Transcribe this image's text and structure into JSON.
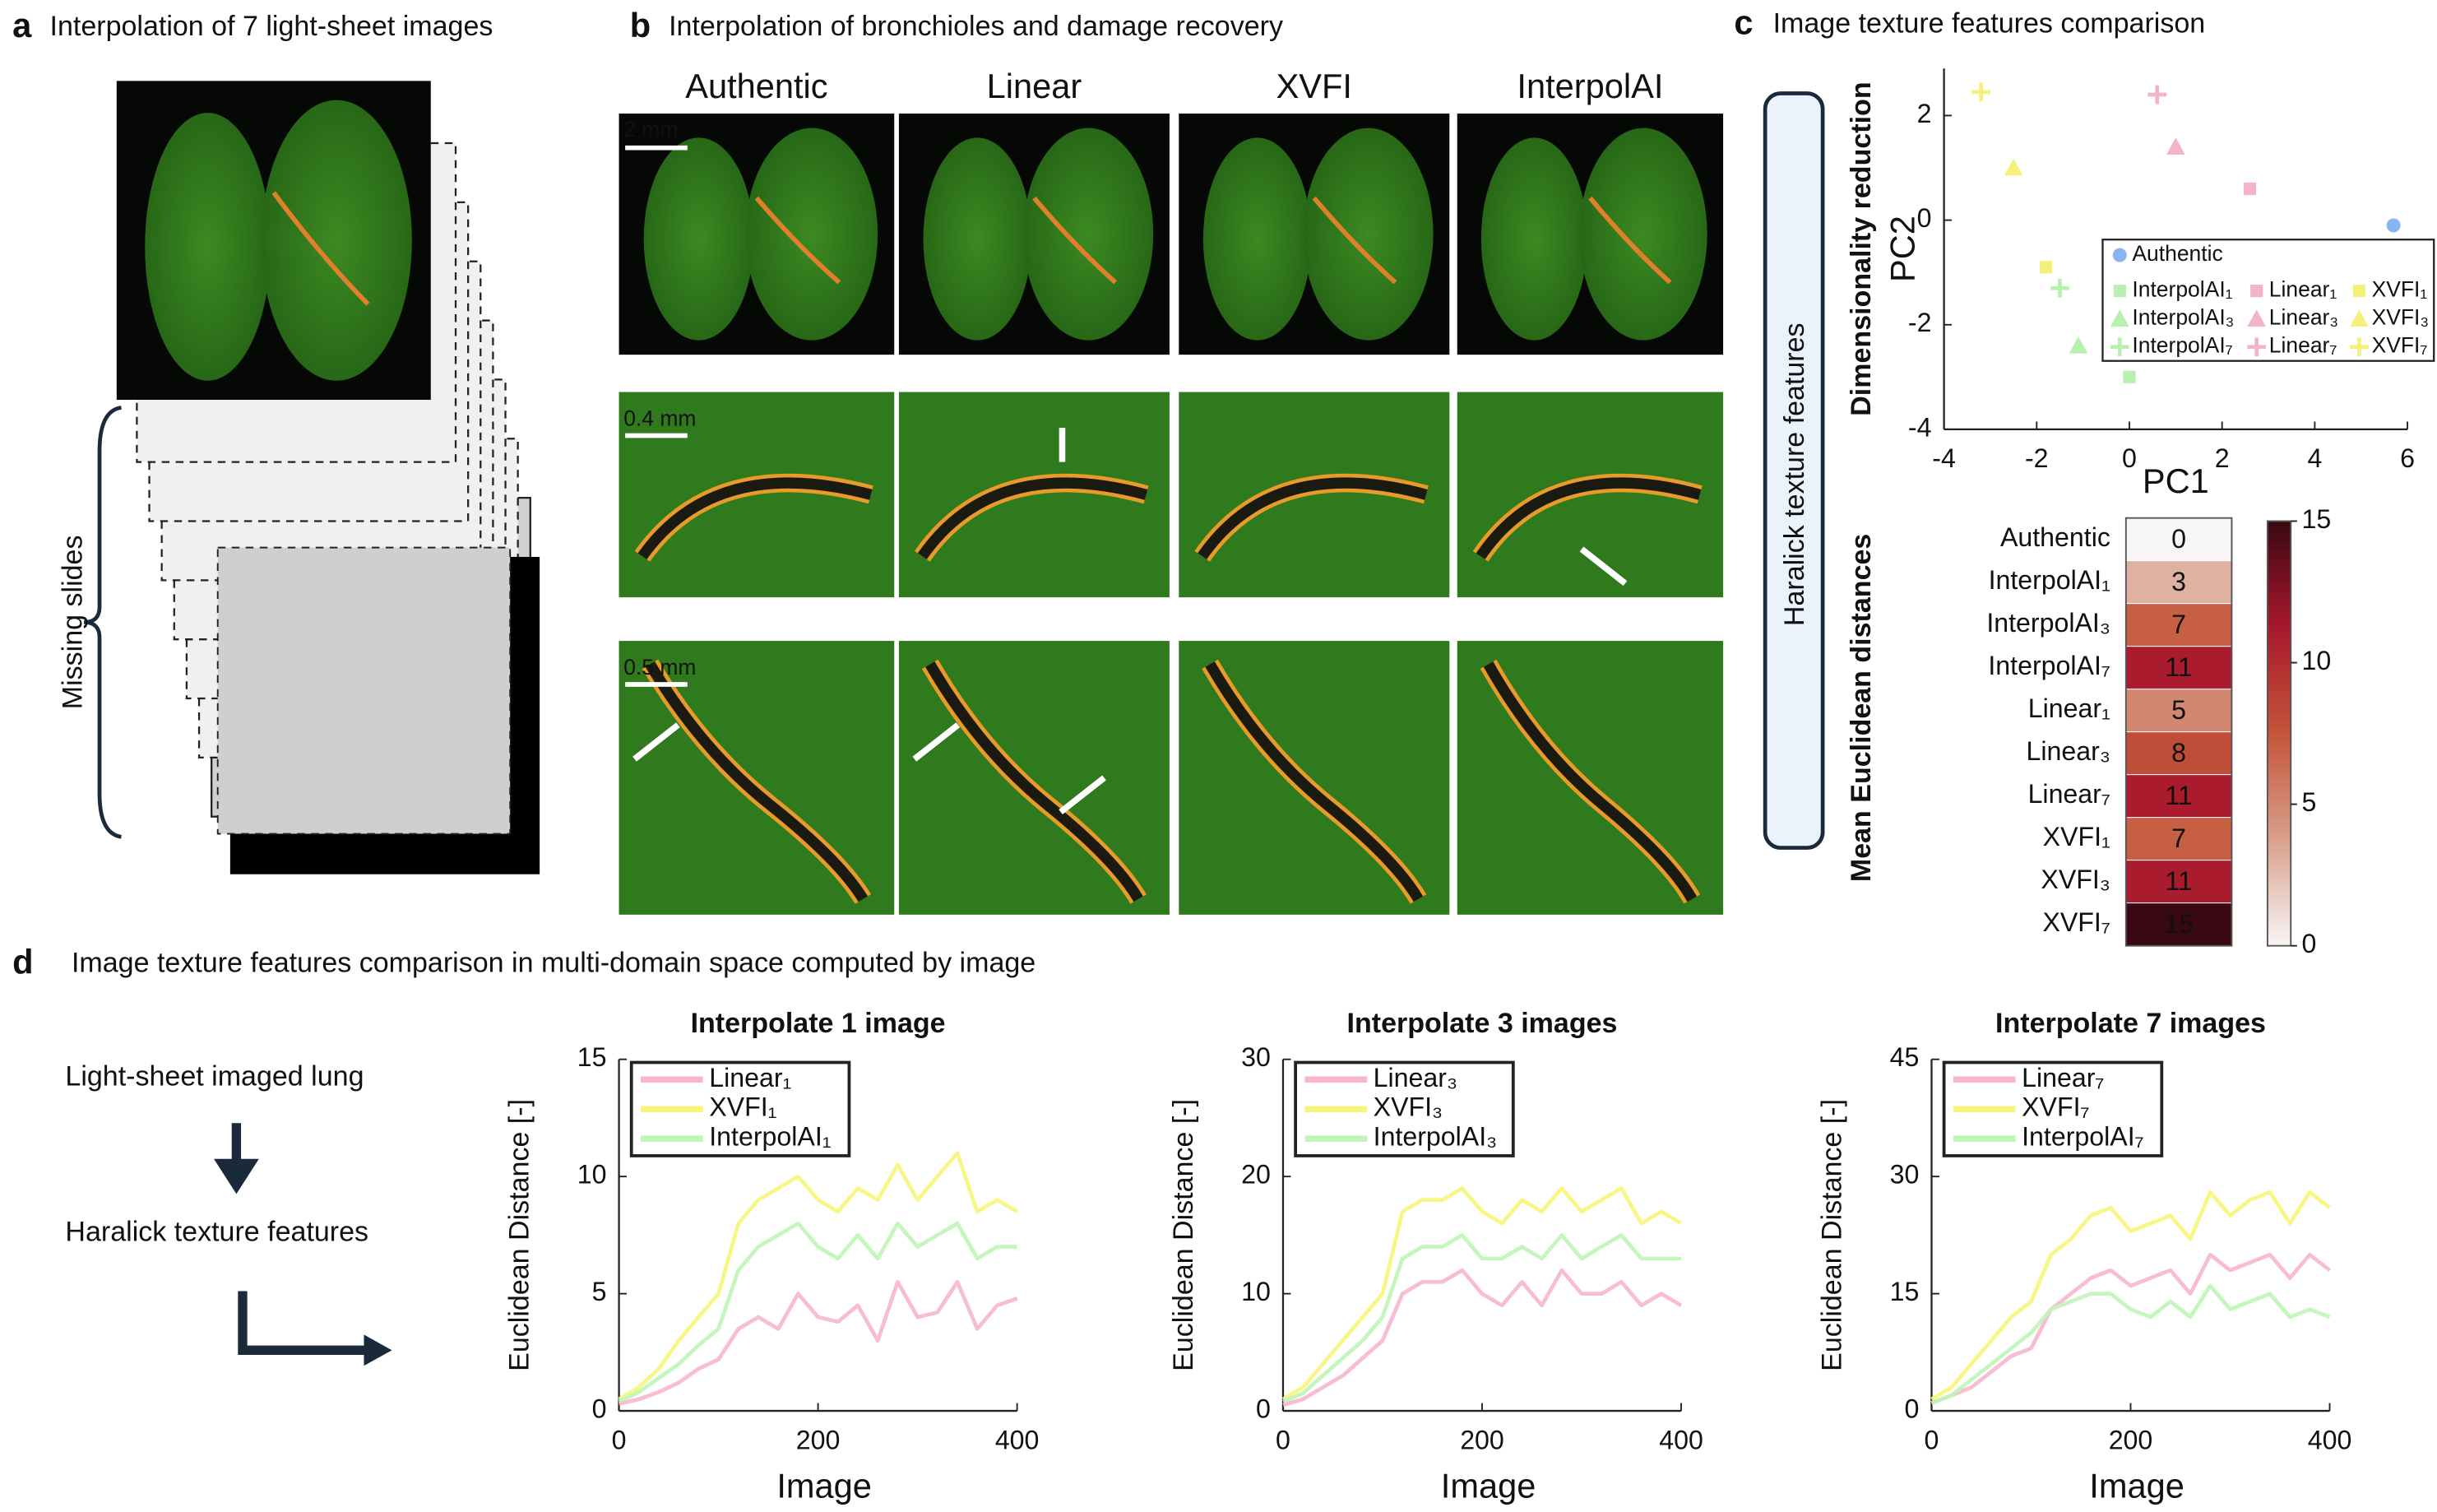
{
  "panel_a": {
    "letter": "a",
    "title": "Interpolation of 7 light-sheet images",
    "bracket_label": "Missing slides"
  },
  "panel_b": {
    "letter": "b",
    "title": "Interpolation of bronchioles and damage recovery",
    "columns": [
      "Authentic",
      "Linear",
      "XVFI",
      "InterpolAI"
    ],
    "column_colors": [
      "#111111",
      "#f29a6b",
      "#1f78c8",
      "#7bd66a"
    ],
    "scale_bars": [
      "2 mm",
      "0.4 mm",
      "0.5 mm"
    ]
  },
  "panel_c": {
    "letter": "c",
    "title": "Image texture features comparison",
    "side_label": "Haralick texture features"
  },
  "panel_d": {
    "letter": "d",
    "title": "Image texture features comparison in multi-domain space computed by image",
    "flow": [
      "Light-sheet imaged lung",
      "Haralick texture features"
    ]
  },
  "chart_data": [
    {
      "type": "scatter",
      "title": "Dimensionality reduction",
      "x_label": "PC1",
      "y_label": "PC2",
      "xlim": [
        -4,
        6
      ],
      "ylim": [
        -4,
        2.9
      ],
      "xticks": [
        -4,
        -2,
        0,
        2,
        4,
        6
      ],
      "yticks": [
        -4,
        -2,
        0,
        2
      ],
      "legend": "right",
      "series": [
        {
          "name": "Authentic",
          "color": "#8ab4f0",
          "marker": "circle",
          "x": [
            5.7
          ],
          "values": [
            -0.1
          ]
        },
        {
          "name": "InterpolAI₁",
          "color": "#b8f0b0",
          "marker": "square",
          "x": [
            0
          ],
          "values": [
            -3
          ]
        },
        {
          "name": "InterpolAI₃",
          "color": "#b8f0b0",
          "marker": "triangle",
          "x": [
            -1.1
          ],
          "values": [
            -2.4
          ]
        },
        {
          "name": "InterpolAI₇",
          "color": "#b8f0b0",
          "marker": "plus",
          "x": [
            -1.5
          ],
          "values": [
            -1.3
          ]
        },
        {
          "name": "Linear₁",
          "color": "#f5b3c8",
          "marker": "square",
          "x": [
            2.6
          ],
          "values": [
            0.6
          ]
        },
        {
          "name": "Linear₃",
          "color": "#f5b3c8",
          "marker": "triangle",
          "x": [
            1
          ],
          "values": [
            1.4
          ]
        },
        {
          "name": "Linear₇",
          "color": "#f5b3c8",
          "marker": "plus",
          "x": [
            0.6
          ],
          "values": [
            2.4
          ]
        },
        {
          "name": "XVFI₁",
          "color": "#f5f07a",
          "marker": "square",
          "x": [
            -1.8
          ],
          "values": [
            -0.9
          ]
        },
        {
          "name": "XVFI₃",
          "color": "#f5f07a",
          "marker": "triangle",
          "x": [
            -2.5
          ],
          "values": [
            1
          ]
        },
        {
          "name": "XVFI₇",
          "color": "#f5f07a",
          "marker": "plus",
          "x": [
            -3.2
          ],
          "values": [
            2.45
          ]
        }
      ]
    },
    {
      "type": "heatmap",
      "y_label": "Mean Euclidean distances",
      "categories": [
        "Authentic",
        "InterpolAI₁",
        "InterpolAI₃",
        "InterpolAI₇",
        "Linear₁",
        "Linear₃",
        "Linear₇",
        "XVFI₁",
        "XVFI₃",
        "XVFI₇"
      ],
      "values": [
        0,
        3,
        7,
        11,
        5,
        8,
        11,
        7,
        11,
        15
      ],
      "clim": [
        0,
        15
      ],
      "colorbar_ticks": [
        0,
        5,
        10,
        15
      ],
      "colormap": [
        "#f8f5f5",
        "#d9a08c",
        "#c4553a",
        "#a8182c",
        "#3a0812"
      ]
    },
    {
      "type": "line",
      "title": "Interpolate 1 image",
      "x_label": "Image",
      "y_label": "Euclidean Distance [-]",
      "x": [
        0,
        20,
        40,
        60,
        80,
        100,
        120,
        140,
        160,
        180,
        200,
        220,
        240,
        260,
        280,
        300,
        320,
        340,
        360,
        380,
        400
      ],
      "xlim": [
        0,
        400
      ],
      "xticks": [
        0,
        200,
        400
      ],
      "ylim": [
        0,
        15
      ],
      "yticks": [
        0,
        5,
        10,
        15
      ],
      "legend": "upper-left",
      "series": [
        {
          "name": "Linear₁",
          "color": "#f7b6cc",
          "values": [
            0.3,
            0.5,
            0.8,
            1.2,
            1.8,
            2.2,
            3.5,
            4,
            3.5,
            5,
            4,
            3.8,
            4.5,
            3,
            5.5,
            4,
            4.2,
            5.5,
            3.5,
            4.5,
            4.8
          ]
        },
        {
          "name": "XVFI₁",
          "color": "#f7f57a",
          "values": [
            0.5,
            1,
            1.8,
            3,
            4,
            5,
            8,
            9,
            9.5,
            10,
            9,
            8.5,
            9.5,
            9,
            10.5,
            9,
            10,
            11,
            8.5,
            9,
            8.5
          ]
        },
        {
          "name": "InterpolAI₁",
          "color": "#bff5b6",
          "values": [
            0.4,
            0.8,
            1.4,
            2,
            2.8,
            3.5,
            6,
            7,
            7.5,
            8,
            7,
            6.5,
            7.5,
            6.5,
            8,
            7,
            7.5,
            8,
            6.5,
            7,
            7
          ]
        }
      ]
    },
    {
      "type": "line",
      "title": "Interpolate 3 images",
      "x_label": "Image",
      "y_label": "Euclidean Distance [-]",
      "x": [
        0,
        20,
        40,
        60,
        80,
        100,
        120,
        140,
        160,
        180,
        200,
        220,
        240,
        260,
        280,
        300,
        320,
        340,
        360,
        380,
        400
      ],
      "xlim": [
        0,
        400
      ],
      "xticks": [
        0,
        200,
        400
      ],
      "ylim": [
        0,
        30
      ],
      "yticks": [
        0,
        10,
        20,
        30
      ],
      "legend": "upper-left",
      "series": [
        {
          "name": "Linear₃",
          "color": "#f7b6cc",
          "values": [
            0.5,
            1,
            2,
            3,
            4.5,
            6,
            10,
            11,
            11,
            12,
            10,
            9,
            11,
            9,
            12,
            10,
            10,
            11,
            9,
            10,
            9
          ]
        },
        {
          "name": "XVFI₃",
          "color": "#f7f57a",
          "values": [
            1,
            2,
            4,
            6,
            8,
            10,
            17,
            18,
            18,
            19,
            17,
            16,
            18,
            17,
            19,
            17,
            18,
            19,
            16,
            17,
            16
          ]
        },
        {
          "name": "InterpolAI₃",
          "color": "#bff5b6",
          "values": [
            0.8,
            1.5,
            3,
            4.5,
            6,
            8,
            13,
            14,
            14,
            15,
            13,
            13,
            14,
            13,
            15,
            13,
            14,
            15,
            13,
            13,
            13
          ]
        }
      ]
    },
    {
      "type": "line",
      "title": "Interpolate 7 images",
      "x_label": "Image",
      "y_label": "Euclidean Distance [-]",
      "x": [
        0,
        20,
        40,
        60,
        80,
        100,
        120,
        140,
        160,
        180,
        200,
        220,
        240,
        260,
        280,
        300,
        320,
        340,
        360,
        380,
        400
      ],
      "xlim": [
        0,
        400
      ],
      "xticks": [
        0,
        200,
        400
      ],
      "ylim": [
        0,
        45
      ],
      "yticks": [
        0,
        15,
        30,
        45
      ],
      "legend": "upper-left",
      "series": [
        {
          "name": "Linear₇",
          "color": "#f7b6cc",
          "values": [
            1,
            2,
            3,
            5,
            7,
            8,
            13,
            15,
            17,
            18,
            16,
            17,
            18,
            15,
            20,
            18,
            19,
            20,
            17,
            20,
            18
          ]
        },
        {
          "name": "XVFI₇",
          "color": "#f7f57a",
          "values": [
            1.5,
            3,
            6,
            9,
            12,
            14,
            20,
            22,
            25,
            26,
            23,
            24,
            25,
            22,
            28,
            25,
            27,
            28,
            24,
            28,
            26
          ]
        },
        {
          "name": "InterpolAI₇",
          "color": "#bff5b6",
          "values": [
            1,
            2,
            4,
            6,
            8,
            10,
            13,
            14,
            15,
            15,
            13,
            12,
            14,
            12,
            16,
            13,
            14,
            15,
            12,
            13,
            12
          ]
        }
      ]
    }
  ]
}
